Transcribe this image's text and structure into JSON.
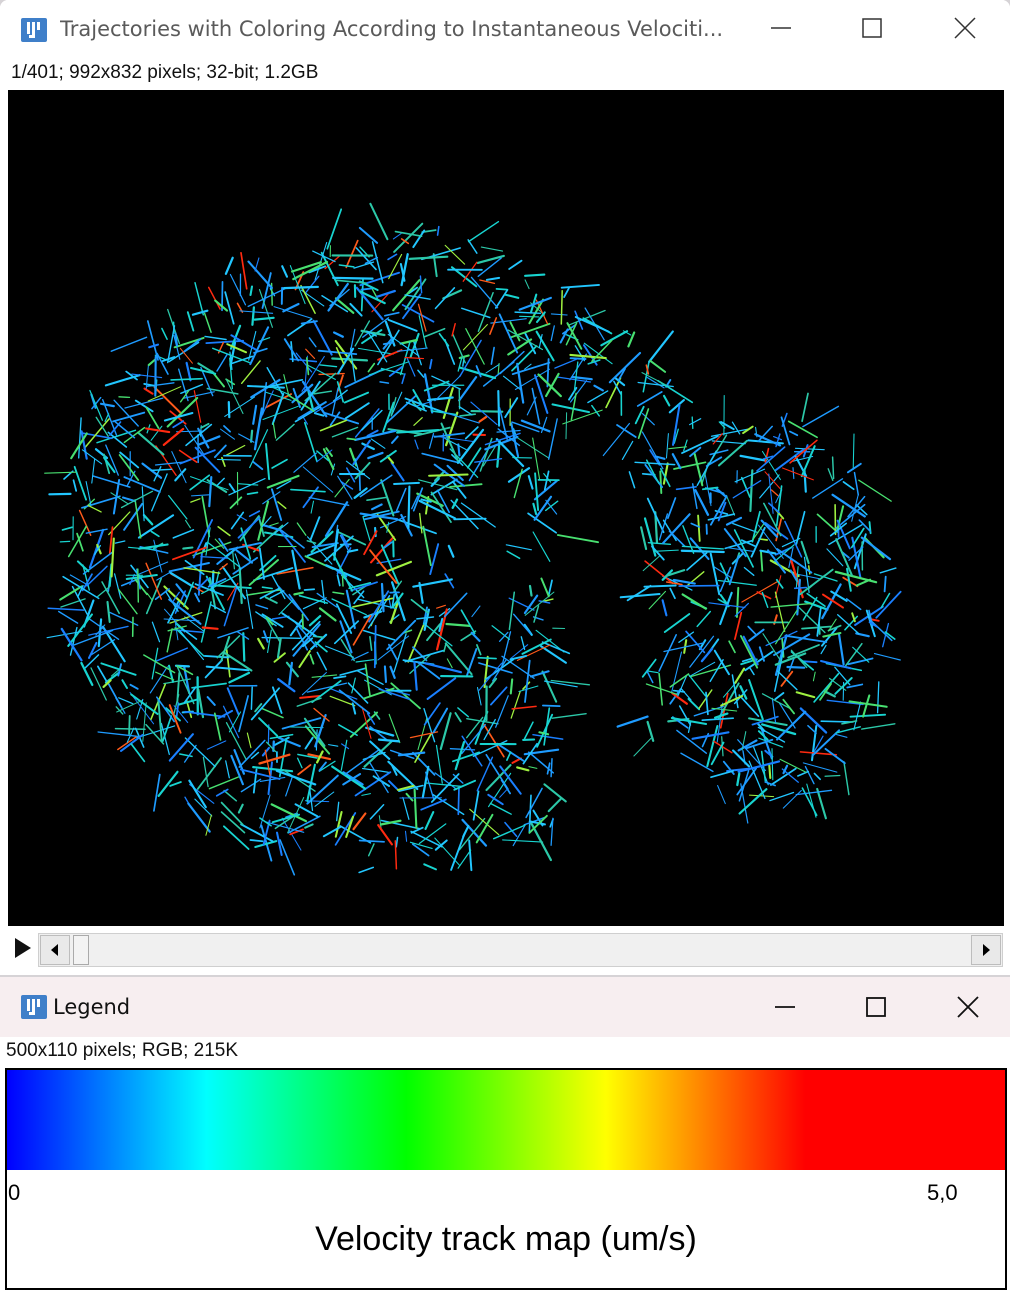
{
  "trajectory_window": {
    "title": "Trajectories with Coloring According to Instantaneous Velociti...",
    "info": "1/401; 992x832 pixels; 32-bit; 1.2GB",
    "icon": "imagej-icon",
    "controls": [
      "minimize-icon",
      "maximize-icon",
      "close-icon"
    ],
    "slider": {
      "current_frame": 1,
      "total_frames": 401
    }
  },
  "legend_window": {
    "title": "Legend",
    "info": "500x110 pixels; RGB; 215K",
    "icon": "imagej-icon",
    "controls": [
      "minimize-icon",
      "maximize-icon",
      "close-icon"
    ],
    "colorbar": {
      "min_label": "0",
      "max_label": "5,0",
      "title": "Velocity track map (um/s)",
      "colors": [
        "#0000ff",
        "#00ffff",
        "#00ff00",
        "#ffff00",
        "#ff0000"
      ]
    }
  }
}
